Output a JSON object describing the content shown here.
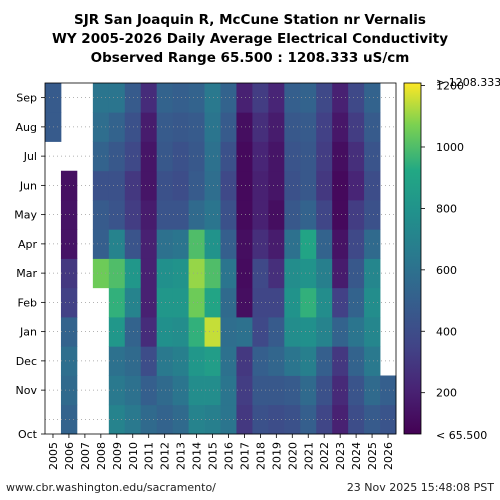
{
  "chart_data": {
    "type": "heatmap",
    "title_lines": [
      "SJR San Joaquin R, McCune Station nr Vernalis",
      "WY 2005-2026 Daily Average Electrical Conductivity",
      "Observed Range 65.500 : 1208.333 uS/cm"
    ],
    "x_categories": [
      "2005",
      "2006",
      "2007",
      "2008",
      "2009",
      "2010",
      "2011",
      "2012",
      "2013",
      "2014",
      "2015",
      "2016",
      "2017",
      "2018",
      "2019",
      "2020",
      "2021",
      "2022",
      "2023",
      "2024",
      "2025",
      "2026"
    ],
    "y_months_bottom_to_top": [
      "Oct",
      "Nov",
      "Dec",
      "Jan",
      "Feb",
      "Mar",
      "Apr",
      "May",
      "Jun",
      "Jul",
      "Aug",
      "Sep"
    ],
    "colorbar": {
      "colormap": "viridis",
      "range": [
        65.5,
        1208.333
      ],
      "ticks": [
        200,
        400,
        600,
        800,
        1000,
        1200
      ],
      "top_label": "> 1208.333",
      "bottom_label": "< 65.500"
    },
    "grid": true,
    "monthly_ec_estimates": [
      {
        "wy": "2005",
        "values": [
          null,
          null,
          null,
          null,
          null,
          null,
          null,
          null,
          null,
          null,
          480,
          480
        ]
      },
      {
        "wy": "2006",
        "values": [
          520,
          560,
          590,
          520,
          340,
          300,
          140,
          140,
          130,
          null,
          null,
          null
        ]
      },
      {
        "wy": "2007",
        "values": [
          null,
          null,
          null,
          null,
          null,
          null,
          null,
          null,
          null,
          null,
          null,
          null
        ]
      },
      {
        "wy": "2008",
        "values": [
          null,
          null,
          null,
          null,
          null,
          1050,
          500,
          480,
          420,
          520,
          580,
          620
        ]
      },
      {
        "wy": "2009",
        "values": [
          700,
          640,
          600,
          820,
          950,
          1000,
          700,
          440,
          420,
          460,
          520,
          620
        ]
      },
      {
        "wy": "2010",
        "values": [
          640,
          600,
          560,
          520,
          700,
          820,
          440,
          320,
          300,
          380,
          420,
          480
        ]
      },
      {
        "wy": "2011",
        "values": [
          560,
          500,
          400,
          250,
          200,
          200,
          200,
          180,
          150,
          150,
          180,
          250
        ]
      },
      {
        "wy": "2012",
        "values": [
          520,
          560,
          640,
          780,
          820,
          780,
          600,
          440,
          420,
          460,
          480,
          520
        ]
      },
      {
        "wy": "2013",
        "values": [
          560,
          620,
          680,
          760,
          820,
          800,
          620,
          440,
          400,
          420,
          460,
          500
        ]
      },
      {
        "wy": "2014",
        "values": [
          700,
          760,
          820,
          950,
          1050,
          1100,
          1000,
          560,
          480,
          460,
          480,
          520
        ]
      },
      {
        "wy": "2015",
        "values": [
          680,
          760,
          860,
          1150,
          900,
          1000,
          800,
          620,
          580,
          600,
          620,
          640
        ]
      },
      {
        "wy": "2016",
        "values": [
          620,
          620,
          600,
          580,
          560,
          620,
          500,
          420,
          380,
          420,
          480,
          520
        ]
      },
      {
        "wy": "2017",
        "values": [
          300,
          320,
          300,
          600,
          120,
          110,
          120,
          100,
          100,
          100,
          120,
          200
        ]
      },
      {
        "wy": "2018",
        "values": [
          420,
          460,
          500,
          380,
          360,
          380,
          260,
          200,
          200,
          220,
          260,
          320
        ]
      },
      {
        "wy": "2019",
        "values": [
          400,
          460,
          540,
          480,
          360,
          260,
          180,
          120,
          150,
          150,
          180,
          220
        ]
      },
      {
        "wy": "2020",
        "values": [
          420,
          480,
          620,
          760,
          800,
          760,
          600,
          460,
          420,
          440,
          460,
          500
        ]
      },
      {
        "wy": "2021",
        "values": [
          500,
          560,
          680,
          780,
          950,
          800,
          900,
          520,
          460,
          460,
          480,
          520
        ]
      },
      {
        "wy": "2022",
        "values": [
          360,
          420,
          500,
          700,
          760,
          680,
          520,
          360,
          300,
          320,
          340,
          380
        ]
      },
      {
        "wy": "2023",
        "values": [
          200,
          240,
          300,
          520,
          340,
          180,
          140,
          100,
          100,
          120,
          160,
          200
        ]
      },
      {
        "wy": "2024",
        "values": [
          400,
          440,
          520,
          620,
          520,
          460,
          380,
          320,
          220,
          260,
          320,
          380
        ]
      },
      {
        "wy": "2025",
        "values": [
          480,
          560,
          640,
          720,
          760,
          720,
          560,
          420,
          400,
          440,
          480,
          520
        ]
      },
      {
        "wy": "2026",
        "values": [
          440,
          500,
          null,
          null,
          null,
          null,
          null,
          null,
          null,
          null,
          null,
          null
        ]
      }
    ]
  },
  "footer": {
    "left": "www.cbr.washington.edu/sacramento/",
    "right": "23 Nov 2025 15:48:08 PST"
  }
}
